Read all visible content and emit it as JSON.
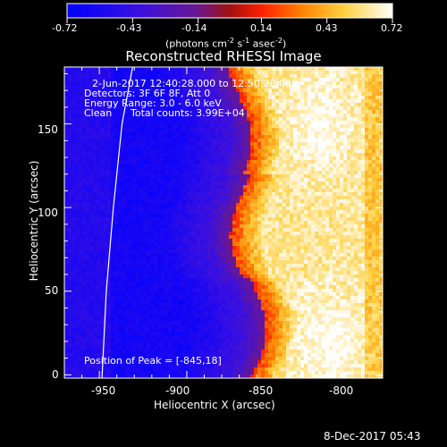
{
  "colorbar": {
    "ticks": [
      "-0.72",
      "-0.43",
      "-0.14",
      "0.14",
      "0.43",
      "0.72"
    ],
    "values": [
      -0.72,
      -0.43,
      -0.14,
      0.14,
      0.43,
      0.72
    ],
    "range": [
      -0.72,
      0.72
    ],
    "units_main": "(photons cm",
    "units_exp1": "-2",
    "units_mid": " s",
    "units_exp2": "-1",
    "units_mid2": " asec",
    "units_exp3": "-2",
    "units_end": ")"
  },
  "chart_data": {
    "type": "heatmap",
    "title": "Reconstructed RHESSI Image",
    "xlabel": "Heliocentric X (arcsec)",
    "ylabel": "Heliocentric Y (arcsec)",
    "xlim": [
      -970,
      -788
    ],
    "ylim": [
      -2,
      184
    ],
    "xticks": [
      -950,
      -900,
      -850,
      -800
    ],
    "xtick_labels": [
      "-950",
      "-900",
      "-850",
      "-800"
    ],
    "yticks": [
      0,
      50,
      100,
      150
    ],
    "ytick_labels": [
      "0",
      "50",
      "100",
      "150"
    ],
    "annotations": [
      "2-Jun-2017 12:40:28.000 to 12:50:28.000",
      "Detectors: 3F 6F 8F, Att 0",
      "Energy Range: 3.0 - 6.0 keV",
      "Clean",
      "Total counts: 3.99E+04"
    ],
    "peak_label": "Position of Peak = [-845,18]",
    "peak": [
      -845,
      18
    ],
    "limb_x": [
      -948.5,
      -946,
      -942,
      -937,
      -931
    ],
    "limb_y": [
      -2,
      50,
      100,
      150,
      184
    ]
  },
  "footer": {
    "date": "8-Dec-2017 05:43"
  }
}
